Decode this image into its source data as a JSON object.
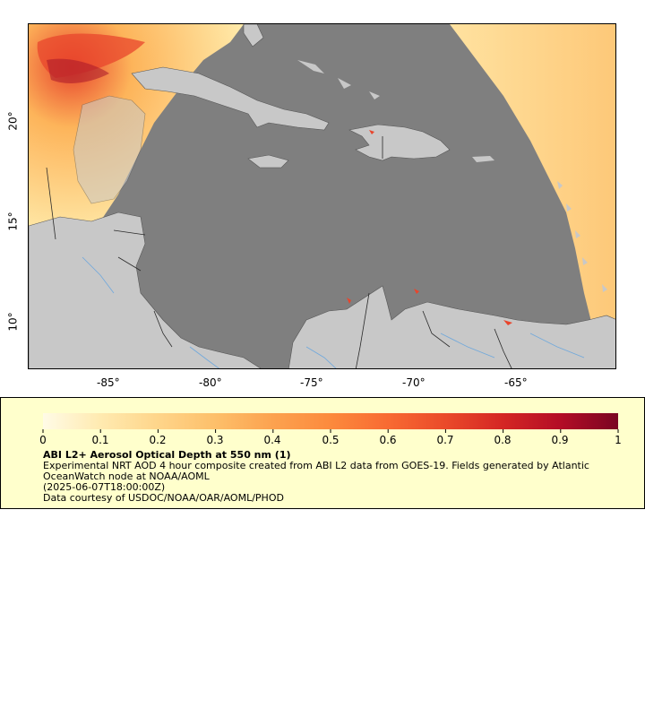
{
  "map": {
    "x_ticks": [
      "-85°",
      "-80°",
      "-75°",
      "-70°",
      "-65°"
    ],
    "y_ticks": [
      "20°",
      "15°",
      "10°"
    ],
    "colors": {
      "ocean": "#7f7f7f",
      "land": "#c8c8c8",
      "border": "#2a2a2a",
      "river": "#6fa8dc",
      "aod_low": "#ffe9a8",
      "aod_mid": "#fdb45a",
      "aod_high": "#e8452c",
      "aod_max": "#7a0a1e"
    }
  },
  "colorbar": {
    "min": 0,
    "max": 1,
    "tick_labels": [
      "0",
      "0.1",
      "0.2",
      "0.3",
      "0.4",
      "0.5",
      "0.6",
      "0.7",
      "0.8",
      "0.9",
      "1"
    ],
    "stops": [
      "#fffbe6",
      "#ffeab0",
      "#fed58a",
      "#fdbf6a",
      "#fca24f",
      "#fc8a3d",
      "#f86a32",
      "#ea4a2a",
      "#d42624",
      "#b30d26",
      "#7a0522"
    ]
  },
  "legend": {
    "title": "ABI L2+ Aerosol Optical Depth at 550 nm (1)",
    "line1": "Experimental NRT AOD 4 hour composite created from ABI L2 data from GOES-19. Fields generated by Atlantic",
    "line2": "OceanWatch node at NOAA/AOML",
    "line3": "(2025-06-07T18:00:00Z)",
    "line4": "Data courtesy of USDOC/NOAA/OAR/AOML/PHOD"
  }
}
